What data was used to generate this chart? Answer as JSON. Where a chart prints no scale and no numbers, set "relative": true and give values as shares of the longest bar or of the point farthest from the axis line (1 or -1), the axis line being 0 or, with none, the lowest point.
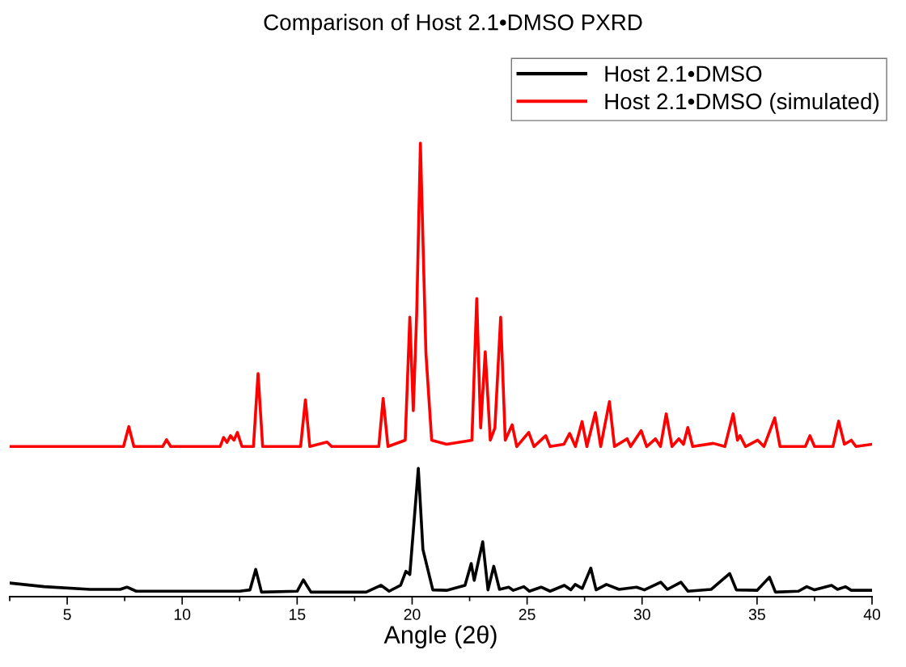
{
  "chart_data": {
    "type": "line",
    "title": "Comparison of Host 2.1•DMSO PXRD",
    "xlabel": "Angle (2θ)",
    "relative": true,
    "legend": "top right",
    "grid": false,
    "xlim": [
      2.5,
      40
    ],
    "xticks": [
      {
        "value": 2.5,
        "label": null
      },
      5,
      {
        "value": 7.5,
        "label": null
      },
      10,
      {
        "value": 12.5,
        "label": null
      },
      15,
      {
        "value": 17.5,
        "label": null
      },
      20,
      {
        "value": 22.5,
        "label": null
      },
      25,
      {
        "value": 27.5,
        "label": null
      },
      30,
      {
        "value": 32.5,
        "label": null
      },
      35,
      {
        "value": 37.5,
        "label": null
      },
      40
    ],
    "series": [
      {
        "name": "Host 2.1•DMSO",
        "color": "#000000",
        "x": [
          2.5,
          4,
          6,
          7.3,
          7.6,
          8,
          12.5,
          12.95,
          13.2,
          13.45,
          15.0,
          15.27,
          15.6,
          18.0,
          18.65,
          19.0,
          19.5,
          19.73,
          19.9,
          20.27,
          20.47,
          20.9,
          21.5,
          22.3,
          22.57,
          22.7,
          23.07,
          23.3,
          23.55,
          23.8,
          24.2,
          24.4,
          24.86,
          25.1,
          25.61,
          26.0,
          26.62,
          26.9,
          27.09,
          27.4,
          27.77,
          28.0,
          28.45,
          29.0,
          29.76,
          30.1,
          30.81,
          31.1,
          31.69,
          32.0,
          33.0,
          33.81,
          34.1,
          35.0,
          35.54,
          35.8,
          36.8,
          37.16,
          37.5,
          38.24,
          38.5,
          38.85,
          39.1,
          40
        ],
        "values": [
          0.03,
          0.022,
          0.016,
          0.016,
          0.021,
          0.012,
          0.012,
          0.015,
          0.06,
          0.01,
          0.012,
          0.037,
          0.01,
          0.01,
          0.025,
          0.012,
          0.025,
          0.056,
          0.049,
          0.283,
          0.104,
          0.015,
          0.014,
          0.025,
          0.073,
          0.036,
          0.121,
          0.015,
          0.067,
          0.016,
          0.021,
          0.014,
          0.022,
          0.012,
          0.021,
          0.012,
          0.025,
          0.015,
          0.027,
          0.018,
          0.063,
          0.015,
          0.027,
          0.016,
          0.021,
          0.015,
          0.032,
          0.016,
          0.032,
          0.012,
          0.016,
          0.051,
          0.015,
          0.014,
          0.043,
          0.01,
          0.012,
          0.022,
          0.015,
          0.025,
          0.016,
          0.022,
          0.014,
          0.014
        ]
      },
      {
        "name": "Host 2.1•DMSO (simulated)",
        "color": "#ff0000",
        "x": [
          2.5,
          7.45,
          7.68,
          7.9,
          9.15,
          9.32,
          9.5,
          11.65,
          11.8,
          11.95,
          12.1,
          12.25,
          12.4,
          12.6,
          13.1,
          13.3,
          13.5,
          15.15,
          15.36,
          15.55,
          16.3,
          16.5,
          18.55,
          18.74,
          18.95,
          19.7,
          19.9,
          20.05,
          20.2,
          20.36,
          20.6,
          20.85,
          21.5,
          22.6,
          22.81,
          22.98,
          23.18,
          23.4,
          23.6,
          23.85,
          24.05,
          24.35,
          24.55,
          25.07,
          25.3,
          25.81,
          26.0,
          26.6,
          26.85,
          27.1,
          27.39,
          27.6,
          27.97,
          28.2,
          28.58,
          28.8,
          29.35,
          29.5,
          29.96,
          30.2,
          30.58,
          30.8,
          31.05,
          31.3,
          31.6,
          31.8,
          31.99,
          32.2,
          33.1,
          33.6,
          33.96,
          34.15,
          34.26,
          34.5,
          35.03,
          35.3,
          35.77,
          36.0,
          37.1,
          37.3,
          37.5,
          38.3,
          38.55,
          38.8,
          39.1,
          39.3,
          40
        ],
        "values": [
          0.331,
          0.331,
          0.375,
          0.331,
          0.331,
          0.346,
          0.331,
          0.331,
          0.351,
          0.34,
          0.355,
          0.345,
          0.362,
          0.331,
          0.331,
          0.492,
          0.331,
          0.331,
          0.434,
          0.331,
          0.341,
          0.331,
          0.331,
          0.437,
          0.331,
          0.345,
          0.616,
          0.41,
          0.626,
          1.0,
          0.537,
          0.345,
          0.336,
          0.345,
          0.657,
          0.372,
          0.54,
          0.345,
          0.372,
          0.616,
          0.345,
          0.379,
          0.331,
          0.362,
          0.331,
          0.355,
          0.331,
          0.336,
          0.36,
          0.331,
          0.386,
          0.331,
          0.406,
          0.331,
          0.43,
          0.331,
          0.348,
          0.331,
          0.366,
          0.331,
          0.348,
          0.331,
          0.403,
          0.331,
          0.348,
          0.336,
          0.373,
          0.331,
          0.338,
          0.331,
          0.403,
          0.345,
          0.355,
          0.331,
          0.345,
          0.331,
          0.394,
          0.331,
          0.331,
          0.355,
          0.331,
          0.331,
          0.387,
          0.336,
          0.345,
          0.331,
          0.336
        ]
      }
    ]
  }
}
